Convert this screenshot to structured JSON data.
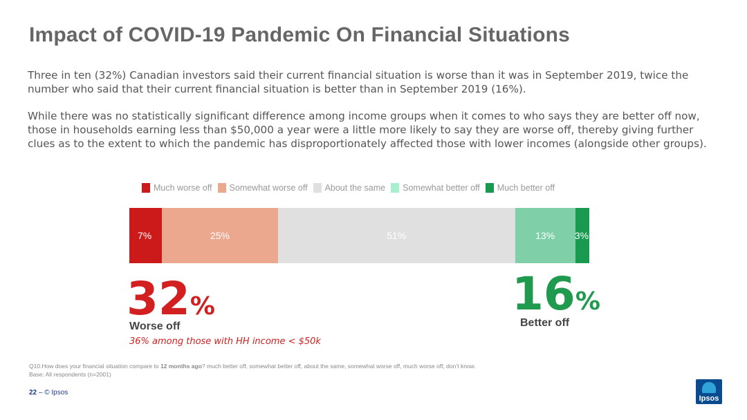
{
  "title": "Impact of COVID-19 Pandemic On Financial Situations",
  "paragraphs": [
    "Three in ten (32%) Canadian investors said their current financial situation is worse than it was in September 2019, twice the number who said that their current financial situation is better than in September 2019 (16%).",
    "While there was no statistically significant difference among income groups when it comes to who says they are better off now, those in households earning less than $50,000 a year were a little more likely to say they are worse off, thereby giving further clues as to the extent to which the pandemic has disproportionately affected those with lower incomes (alongside other groups)."
  ],
  "chart_data": {
    "type": "bar",
    "stacked": true,
    "orientation": "horizontal",
    "legend_position": "top",
    "series": [
      {
        "name": "Much worse off",
        "value": 7,
        "label": "7%",
        "color": "#cc1a1a"
      },
      {
        "name": "Somewhat worse off",
        "value": 25,
        "label": "25%",
        "color": "#eca88f"
      },
      {
        "name": "About the same",
        "value": 51,
        "label": "51%",
        "color": "#e0e0e0"
      },
      {
        "name": "Somewhat better off",
        "value": 13,
        "label": "13%",
        "color": "#7fcfa9"
      },
      {
        "name": "Much better off",
        "value": 3,
        "label": "3%",
        "color": "#1a9a50"
      }
    ],
    "legend_swatch_colors": [
      "#cc1a1a",
      "#eca88f",
      "#e0e0e0",
      "#a6f0cd",
      "#1a9a50"
    ]
  },
  "summary": {
    "worse": {
      "number": "32",
      "pct": "%",
      "label": "Worse off",
      "note": "36% among those with HH income < $50k"
    },
    "better": {
      "number": "16",
      "pct": "%",
      "label": "Better off"
    }
  },
  "question": {
    "prefix": "Q10.How does your financial situation compare to ",
    "bold": "12 months ago",
    "suffix": "?  much better off, somewhat better off, about the same, somewhat worse off, much worse off, don’t know.",
    "base": "Base: All respondents (n=2001)"
  },
  "footer": {
    "page": "22",
    "sep": " – ",
    "copyright": "© Ipsos"
  },
  "logo_text": "Ipsos",
  "colors": {
    "worse": "#d21f1f",
    "better": "#1f9a4e"
  }
}
